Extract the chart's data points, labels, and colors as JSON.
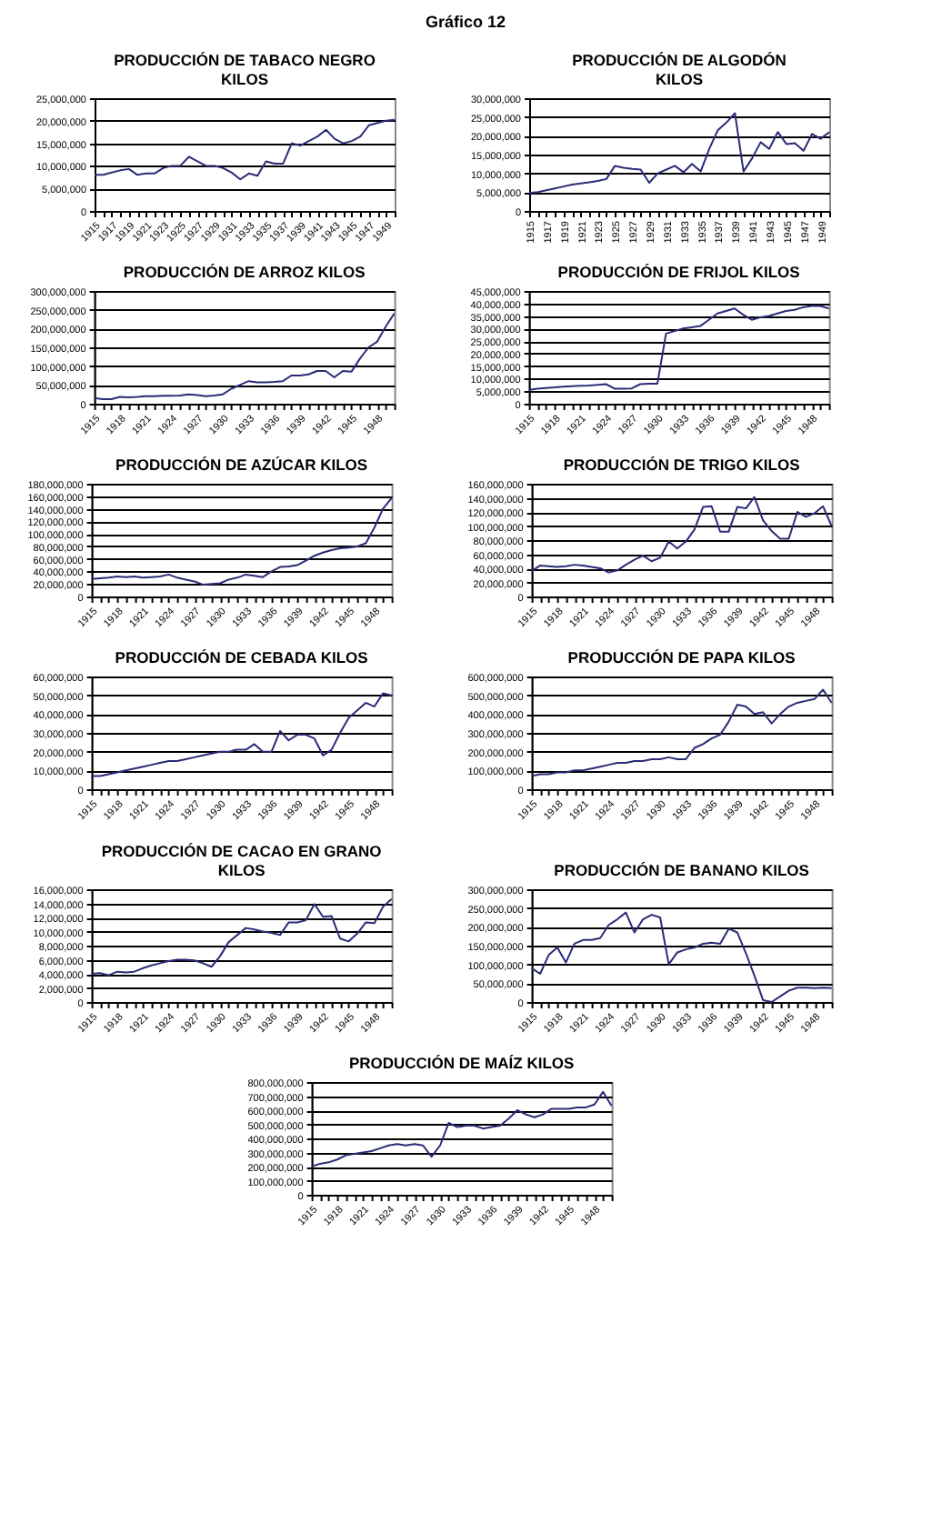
{
  "chart_data": [
    {
      "type": "other",
      "title": "Gráfico 12"
    },
    {
      "type": "line",
      "title": "PRODUCCIÓN DE TABACO NEGRO\nKILOS",
      "color": "#2b2b78",
      "grid": "y",
      "ylim": [
        0,
        25000000
      ],
      "yticks": [
        0,
        {
          "value": 5000000,
          "label": "5,000,000"
        },
        {
          "value": 10000000,
          "label": "10,000,000"
        },
        {
          "value": 15000000,
          "label": "15,000,000"
        },
        {
          "value": 20000000,
          "label": "20,000,000"
        },
        {
          "value": 25000000,
          "label": "25,000,000"
        }
      ],
      "categories": [
        "1915",
        null,
        "1917",
        null,
        "1919",
        null,
        "1921",
        null,
        "1923",
        null,
        "1925",
        null,
        "1927",
        null,
        "1929",
        null,
        "1931",
        null,
        "1933",
        null,
        "1935",
        null,
        "1937",
        null,
        "1939",
        null,
        "1941",
        null,
        "1943",
        null,
        "1945",
        null,
        "1947",
        null,
        "1949",
        null
      ],
      "values": [
        8000000,
        8000000,
        8500000,
        9000000,
        9300000,
        8000000,
        8300000,
        8300000,
        9500000,
        10000000,
        10000000,
        12000000,
        11000000,
        10000000,
        10000000,
        9500000,
        8500000,
        7000000,
        8300000,
        7800000,
        11000000,
        10500000,
        10500000,
        15000000,
        14500000,
        15500000,
        16500000,
        18000000,
        16000000,
        15000000,
        15500000,
        16500000,
        19000000,
        19500000,
        20000000,
        20200000
      ]
    },
    {
      "type": "line",
      "title": "PRODUCCIÓN DE ALGODÓN\nKILOS",
      "color": "#2b2b78",
      "grid": "y",
      "ylim": [
        0,
        30000000
      ],
      "yticks": [
        0,
        {
          "value": 5000000,
          "label": "5,000,000"
        },
        {
          "value": 10000000,
          "label": "10,000,000"
        },
        {
          "value": 15000000,
          "label": "15,000,000"
        },
        {
          "value": 20000000,
          "label": "20,000,000"
        },
        {
          "value": 25000000,
          "label": "25,000,000"
        },
        {
          "value": 30000000,
          "label": "30,000,000"
        }
      ],
      "categories": [
        "1915",
        null,
        "1917",
        null,
        "1919",
        null,
        "1921",
        null,
        "1923",
        null,
        "1925",
        null,
        "1927",
        null,
        "1929",
        null,
        "1931",
        null,
        "1933",
        null,
        "1935",
        null,
        "1937",
        null,
        "1939",
        null,
        "1941",
        null,
        "1943",
        null,
        "1945",
        null,
        "1947",
        null,
        "1949",
        null
      ],
      "values": [
        4800000,
        5000000,
        5500000,
        6000000,
        6500000,
        7000000,
        7300000,
        7600000,
        8000000,
        8500000,
        12000000,
        11500000,
        11200000,
        11000000,
        7500000,
        10000000,
        11000000,
        12000000,
        10300000,
        12500000,
        10500000,
        16500000,
        21500000,
        23500000,
        26000000,
        10500000,
        14000000,
        18300000,
        16500000,
        21000000,
        17800000,
        18000000,
        16000000,
        20500000,
        19200000,
        21000000
      ]
    },
    {
      "type": "line",
      "title": "PRODUCCIÓN DE ARROZ KILOS",
      "color": "#2b2b78",
      "grid": "y",
      "ylim": [
        0,
        300000000
      ],
      "yticks": [
        0,
        {
          "value": 50000000,
          "label": "50,000,000"
        },
        {
          "value": 100000000,
          "label": "100,000,000"
        },
        {
          "value": 150000000,
          "label": "150,000,000"
        },
        {
          "value": 200000000,
          "label": "200,000,000"
        },
        {
          "value": 250000000,
          "label": "250,000,000"
        },
        {
          "value": 300000000,
          "label": "300,000,000"
        }
      ],
      "categories": [
        "1915",
        null,
        null,
        "1918",
        null,
        null,
        "1921",
        null,
        null,
        "1924",
        null,
        null,
        "1927",
        null,
        null,
        "1930",
        null,
        null,
        "1933",
        null,
        null,
        "1936",
        null,
        null,
        "1939",
        null,
        null,
        "1942",
        null,
        null,
        "1945",
        null,
        null,
        "1948",
        null,
        null
      ],
      "values": [
        15000000,
        12000000,
        12000000,
        18000000,
        17000000,
        18000000,
        20000000,
        20000000,
        21000000,
        21000000,
        22000000,
        25000000,
        23000000,
        20000000,
        22000000,
        25000000,
        40000000,
        50000000,
        60000000,
        57000000,
        57000000,
        58000000,
        60000000,
        75000000,
        75000000,
        78000000,
        87000000,
        87000000,
        70000000,
        87000000,
        85000000,
        120000000,
        150000000,
        165000000,
        205000000,
        240000000
      ]
    },
    {
      "type": "line",
      "title": "PRODUCCIÓN DE FRIJOL KILOS",
      "color": "#2b2b78",
      "grid": "y",
      "ylim": [
        0,
        45000000
      ],
      "yticks": [
        0,
        {
          "value": 5000000,
          "label": "5,000,000"
        },
        {
          "value": 10000000,
          "label": "10,000,000"
        },
        {
          "value": 15000000,
          "label": "15,000,000"
        },
        {
          "value": 20000000,
          "label": "20,000,000"
        },
        {
          "value": 25000000,
          "label": "25,000,000"
        },
        {
          "value": 30000000,
          "label": "30,000,000"
        },
        {
          "value": 35000000,
          "label": "35,000,000"
        },
        {
          "value": 40000000,
          "label": "40,000,000"
        },
        {
          "value": 45000000,
          "label": "45,000,000"
        }
      ],
      "categories": [
        "1915",
        null,
        null,
        "1918",
        null,
        null,
        "1921",
        null,
        null,
        "1924",
        null,
        null,
        "1927",
        null,
        null,
        "1930",
        null,
        null,
        "1933",
        null,
        null,
        "1936",
        null,
        null,
        "1939",
        null,
        null,
        "1942",
        null,
        null,
        "1945",
        null,
        null,
        "1948",
        null,
        null
      ],
      "values": [
        5500000,
        6000000,
        6300000,
        6500000,
        6800000,
        7000000,
        7200000,
        7300000,
        7500000,
        7800000,
        6000000,
        6000000,
        6100000,
        7800000,
        8000000,
        8000000,
        28000000,
        29000000,
        30000000,
        30500000,
        31000000,
        33500000,
        36000000,
        37000000,
        38000000,
        35500000,
        33500000,
        34500000,
        35000000,
        36000000,
        37000000,
        37500000,
        38500000,
        39000000,
        39000000,
        38000000
      ]
    },
    {
      "type": "line",
      "title": "PRODUCCIÓN DE AZÚCAR KILOS",
      "color": "#2b2b78",
      "grid": "y",
      "ylim": [
        0,
        180000000
      ],
      "yticks": [
        0,
        {
          "value": 20000000,
          "label": "20,000,000"
        },
        {
          "value": 40000000,
          "label": "40,000,000"
        },
        {
          "value": 60000000,
          "label": "60,000,000"
        },
        {
          "value": 80000000,
          "label": "80,000,000"
        },
        {
          "value": 100000000,
          "label": "100,000,000"
        },
        {
          "value": 120000000,
          "label": "120,000,000"
        },
        {
          "value": 140000000,
          "label": "140,000,000"
        },
        {
          "value": 160000000,
          "label": "160,000,000"
        },
        {
          "value": 180000000,
          "label": "180,000,000"
        }
      ],
      "categories": [
        "1915",
        null,
        null,
        "1918",
        null,
        null,
        "1921",
        null,
        null,
        "1924",
        null,
        null,
        "1927",
        null,
        null,
        "1930",
        null,
        null,
        "1933",
        null,
        null,
        "1936",
        null,
        null,
        "1939",
        null,
        null,
        "1942",
        null,
        null,
        "1945",
        null,
        null,
        "1948",
        null,
        null
      ],
      "values": [
        28000000,
        29000000,
        30000000,
        32000000,
        31000000,
        32000000,
        30000000,
        31000000,
        32000000,
        35000000,
        30000000,
        27000000,
        24000000,
        19000000,
        20000000,
        21000000,
        27000000,
        30000000,
        35000000,
        33000000,
        31000000,
        40000000,
        47000000,
        48000000,
        50000000,
        57000000,
        65000000,
        70000000,
        74000000,
        77000000,
        78000000,
        80000000,
        85000000,
        110000000,
        140000000,
        157000000
      ]
    },
    {
      "type": "line",
      "title": "PRODUCCIÓN DE TRIGO KILOS",
      "color": "#2b2b78",
      "grid": "y",
      "ylim": [
        0,
        160000000
      ],
      "yticks": [
        0,
        {
          "value": 20000000,
          "label": "20,000,000"
        },
        {
          "value": 40000000,
          "label": "40,000,000"
        },
        {
          "value": 60000000,
          "label": "60,000,000"
        },
        {
          "value": 80000000,
          "label": "80,000,000"
        },
        {
          "value": 100000000,
          "label": "100,000,000"
        },
        {
          "value": 120000000,
          "label": "120,000,000"
        },
        {
          "value": 140000000,
          "label": "140,000,000"
        },
        {
          "value": 160000000,
          "label": "160,000,000"
        }
      ],
      "categories": [
        "1915",
        null,
        null,
        "1918",
        null,
        null,
        "1921",
        null,
        null,
        "1924",
        null,
        null,
        "1927",
        null,
        null,
        "1930",
        null,
        null,
        "1933",
        null,
        null,
        "1936",
        null,
        null,
        "1939",
        null,
        null,
        "1942",
        null,
        null,
        "1945",
        null,
        null,
        "1948",
        null,
        null
      ],
      "values": [
        36000000,
        44000000,
        43000000,
        42000000,
        43000000,
        45000000,
        44000000,
        42000000,
        40000000,
        34000000,
        37000000,
        45000000,
        52000000,
        58000000,
        50000000,
        55000000,
        78000000,
        68000000,
        78000000,
        95000000,
        127000000,
        128000000,
        92000000,
        92000000,
        127000000,
        125000000,
        141000000,
        108000000,
        93000000,
        82000000,
        82000000,
        120000000,
        113000000,
        118000000,
        128000000,
        100000000
      ]
    },
    {
      "type": "line",
      "title": "PRODUCCIÓN DE CEBADA KILOS",
      "color": "#2b2b78",
      "grid": "y",
      "ylim": [
        0,
        60000000
      ],
      "yticks": [
        0,
        {
          "value": 10000000,
          "label": "10,000,000"
        },
        {
          "value": 20000000,
          "label": "20,000,000"
        },
        {
          "value": 30000000,
          "label": "30,000,000"
        },
        {
          "value": 40000000,
          "label": "40,000,000"
        },
        {
          "value": 50000000,
          "label": "50,000,000"
        },
        {
          "value": 60000000,
          "label": "60,000,000"
        }
      ],
      "categories": [
        "1915",
        null,
        null,
        "1918",
        null,
        null,
        "1921",
        null,
        null,
        "1924",
        null,
        null,
        "1927",
        null,
        null,
        "1930",
        null,
        null,
        "1933",
        null,
        null,
        "1936",
        null,
        null,
        "1939",
        null,
        null,
        "1942",
        null,
        null,
        "1945",
        null,
        null,
        "1948",
        null,
        null
      ],
      "values": [
        7000000,
        7000000,
        8000000,
        9000000,
        10000000,
        11000000,
        12000000,
        13000000,
        14000000,
        15000000,
        15000000,
        16000000,
        17000000,
        18000000,
        19000000,
        20000000,
        20000000,
        21000000,
        21000000,
        24000000,
        20000000,
        20000000,
        31000000,
        26000000,
        29000000,
        29000000,
        27000000,
        18000000,
        21000000,
        30000000,
        38000000,
        42000000,
        46000000,
        44000000,
        51000000,
        50000000
      ]
    },
    {
      "type": "line",
      "title": "PRODUCCIÓN DE PAPA KILOS",
      "color": "#2b2b78",
      "grid": "y",
      "ylim": [
        0,
        600000000
      ],
      "yticks": [
        0,
        {
          "value": 100000000,
          "label": "100,000,000"
        },
        {
          "value": 200000000,
          "label": "200,000,000"
        },
        {
          "value": 300000000,
          "label": "300,000,000"
        },
        {
          "value": 400000000,
          "label": "400,000,000"
        },
        {
          "value": 500000000,
          "label": "500,000,000"
        },
        {
          "value": 600000000,
          "label": "600,000,000"
        }
      ],
      "categories": [
        "1915",
        null,
        null,
        "1918",
        null,
        null,
        "1921",
        null,
        null,
        "1924",
        null,
        null,
        "1927",
        null,
        null,
        "1930",
        null,
        null,
        "1933",
        null,
        null,
        "1936",
        null,
        null,
        "1939",
        null,
        null,
        "1942",
        null,
        null,
        "1945",
        null,
        null,
        "1948",
        null,
        null
      ],
      "values": [
        70000000,
        80000000,
        80000000,
        90000000,
        90000000,
        100000000,
        100000000,
        110000000,
        120000000,
        130000000,
        140000000,
        140000000,
        150000000,
        150000000,
        160000000,
        160000000,
        170000000,
        160000000,
        160000000,
        220000000,
        240000000,
        270000000,
        290000000,
        360000000,
        450000000,
        440000000,
        400000000,
        410000000,
        350000000,
        400000000,
        440000000,
        460000000,
        470000000,
        480000000,
        530000000,
        460000000
      ]
    },
    {
      "type": "line",
      "title": "PRODUCCIÓN DE CACAO EN GRANO\nKILOS",
      "color": "#2b2b78",
      "grid": "y",
      "ylim": [
        0,
        16000000
      ],
      "yticks": [
        0,
        {
          "value": 2000000,
          "label": "2,000,000"
        },
        {
          "value": 4000000,
          "label": "4,000,000"
        },
        {
          "value": 6000000,
          "label": "6,000,000"
        },
        {
          "value": 8000000,
          "label": "8,000,000"
        },
        {
          "value": 10000000,
          "label": "10,000,000"
        },
        {
          "value": 12000000,
          "label": "12,000,000"
        },
        {
          "value": 14000000,
          "label": "14,000,000"
        },
        {
          "value": 16000000,
          "label": "16,000,000"
        }
      ],
      "categories": [
        "1915",
        null,
        null,
        "1918",
        null,
        null,
        "1921",
        null,
        null,
        "1924",
        null,
        null,
        "1927",
        null,
        null,
        "1930",
        null,
        null,
        "1933",
        null,
        null,
        "1936",
        null,
        null,
        "1939",
        null,
        null,
        "1942",
        null,
        null,
        "1945",
        null,
        null,
        "1948",
        null,
        null
      ],
      "values": [
        4000000,
        4100000,
        3800000,
        4300000,
        4200000,
        4300000,
        4800000,
        5200000,
        5500000,
        5800000,
        6000000,
        6000000,
        5900000,
        5500000,
        5000000,
        6500000,
        8500000,
        9500000,
        10500000,
        10300000,
        10000000,
        9800000,
        9500000,
        11300000,
        11300000,
        11600000,
        13900000,
        12100000,
        12200000,
        9000000,
        8600000,
        9700000,
        11300000,
        11200000,
        13500000,
        14600000
      ]
    },
    {
      "type": "line",
      "title": "PRODUCCIÓN DE BANANO KILOS",
      "color": "#2b2b78",
      "grid": "y",
      "ylim": [
        0,
        300000000
      ],
      "yticks": [
        0,
        {
          "value": 50000000,
          "label": "50,000,000"
        },
        {
          "value": 100000000,
          "label": "100,000,000"
        },
        {
          "value": 150000000,
          "label": "150,000,000"
        },
        {
          "value": 200000000,
          "label": "200,000,000"
        },
        {
          "value": 250000000,
          "label": "250,000,000"
        },
        {
          "value": 300000000,
          "label": "300,000,000"
        }
      ],
      "categories": [
        "1915",
        null,
        null,
        "1918",
        null,
        null,
        "1921",
        null,
        null,
        "1924",
        null,
        null,
        "1927",
        null,
        null,
        "1930",
        null,
        null,
        "1933",
        null,
        null,
        "1936",
        null,
        null,
        "1939",
        null,
        null,
        "1942",
        null,
        null,
        "1945",
        null,
        null,
        "1948",
        null,
        null
      ],
      "values": [
        90000000,
        75000000,
        125000000,
        145000000,
        105000000,
        155000000,
        165000000,
        165000000,
        170000000,
        205000000,
        220000000,
        238000000,
        185000000,
        220000000,
        232000000,
        225000000,
        100000000,
        132000000,
        140000000,
        145000000,
        155000000,
        158000000,
        155000000,
        195000000,
        185000000,
        130000000,
        70000000,
        5000000,
        0,
        15000000,
        30000000,
        38000000,
        38000000,
        37000000,
        38000000,
        37000000
      ]
    },
    {
      "type": "line",
      "title": "PRODUCCIÓN DE MAÍZ KILOS",
      "color": "#2b2b78",
      "grid": "y",
      "ylim": [
        0,
        800000000
      ],
      "yticks": [
        0,
        {
          "value": 100000000,
          "label": "100,000,000"
        },
        {
          "value": 200000000,
          "label": "200,000,000"
        },
        {
          "value": 300000000,
          "label": "300,000,000"
        },
        {
          "value": 400000000,
          "label": "400,000,000"
        },
        {
          "value": 500000000,
          "label": "500,000,000"
        },
        {
          "value": 600000000,
          "label": "600,000,000"
        },
        {
          "value": 700000000,
          "label": "700,000,000"
        },
        {
          "value": 800000000,
          "label": "800,000,000"
        }
      ],
      "categories": [
        "1915",
        null,
        null,
        "1918",
        null,
        null,
        "1921",
        null,
        null,
        "1924",
        null,
        null,
        "1927",
        null,
        null,
        "1930",
        null,
        null,
        "1933",
        null,
        null,
        "1936",
        null,
        null,
        "1939",
        null,
        null,
        "1942",
        null,
        null,
        "1945",
        null,
        null,
        "1948",
        null,
        null
      ],
      "values": [
        200000000,
        220000000,
        230000000,
        250000000,
        280000000,
        290000000,
        300000000,
        310000000,
        330000000,
        350000000,
        360000000,
        350000000,
        360000000,
        350000000,
        270000000,
        350000000,
        510000000,
        480000000,
        490000000,
        490000000,
        470000000,
        480000000,
        490000000,
        540000000,
        600000000,
        570000000,
        550000000,
        570000000,
        610000000,
        610000000,
        610000000,
        620000000,
        620000000,
        640000000,
        730000000,
        630000000
      ]
    }
  ]
}
